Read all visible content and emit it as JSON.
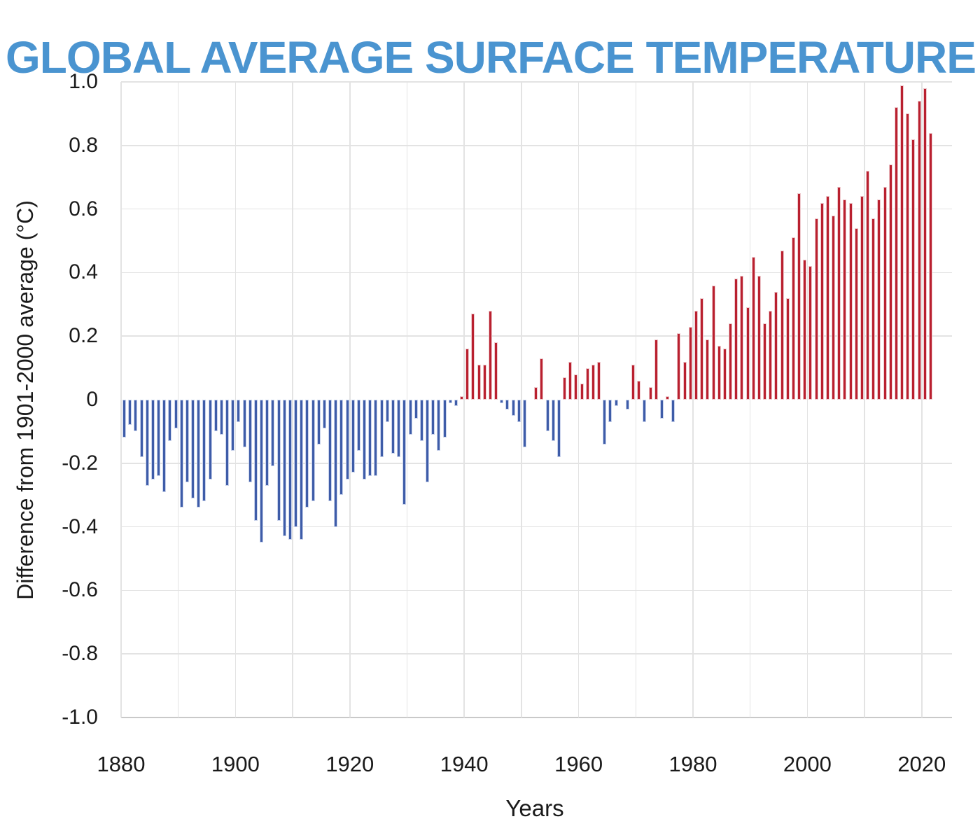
{
  "colors": {
    "background": "#ffffff",
    "title": "#4a94d0",
    "text": "#1a1a1a",
    "gridline": "#e3e3e3",
    "axis_line": "#c9c9c9",
    "positive_bar": "#b9202f",
    "positive_bar_edge": "#eec9cd",
    "negative_bar": "#3e5ca8",
    "negative_bar_edge": "#c9d3ec"
  },
  "chart_data": {
    "type": "bar",
    "title": "GLOBAL AVERAGE SURFACE TEMPERATURE",
    "xlabel": "Years",
    "ylabel": "Difference from 1901-2000 average (°C)",
    "ylim": [
      -1.0,
      1.0
    ],
    "grid": "on",
    "legend": "none",
    "y_tick_values": [
      1.0,
      0.8,
      0.6,
      0.4,
      0.2,
      0,
      -0.2,
      -0.4,
      -0.6,
      -0.8,
      -1.0
    ],
    "y_tick_labels": [
      "1.0",
      "0.8",
      "0.6",
      "0.4",
      "0.2",
      "0",
      "-0.2",
      "-0.4",
      "-0.6",
      "-0.8",
      "-1.0"
    ],
    "x_tick_labels": [
      "1880",
      "1900",
      "1920",
      "1940",
      "1960",
      "1980",
      "2000",
      "2020"
    ],
    "x_gridline_years": [
      1880,
      1890,
      1900,
      1910,
      1920,
      1930,
      1940,
      1950,
      1960,
      1970,
      1980,
      1990,
      2000,
      2010,
      2020
    ],
    "start_year": 1880,
    "end_year": 2021,
    "years": [
      1880,
      1881,
      1882,
      1883,
      1884,
      1885,
      1886,
      1887,
      1888,
      1889,
      1890,
      1891,
      1892,
      1893,
      1894,
      1895,
      1896,
      1897,
      1898,
      1899,
      1900,
      1901,
      1902,
      1903,
      1904,
      1905,
      1906,
      1907,
      1908,
      1909,
      1910,
      1911,
      1912,
      1913,
      1914,
      1915,
      1916,
      1917,
      1918,
      1919,
      1920,
      1921,
      1922,
      1923,
      1924,
      1925,
      1926,
      1927,
      1928,
      1929,
      1930,
      1931,
      1932,
      1933,
      1934,
      1935,
      1936,
      1937,
      1938,
      1939,
      1940,
      1941,
      1942,
      1943,
      1944,
      1945,
      1946,
      1947,
      1948,
      1949,
      1950,
      1951,
      1952,
      1953,
      1954,
      1955,
      1956,
      1957,
      1958,
      1959,
      1960,
      1961,
      1962,
      1963,
      1964,
      1965,
      1966,
      1967,
      1968,
      1969,
      1970,
      1971,
      1972,
      1973,
      1974,
      1975,
      1976,
      1977,
      1978,
      1979,
      1980,
      1981,
      1982,
      1983,
      1984,
      1985,
      1986,
      1987,
      1988,
      1989,
      1990,
      1991,
      1992,
      1993,
      1994,
      1995,
      1996,
      1997,
      1998,
      1999,
      2000,
      2001,
      2002,
      2003,
      2004,
      2005,
      2006,
      2007,
      2008,
      2009,
      2010,
      2011,
      2012,
      2013,
      2014,
      2015,
      2016,
      2017,
      2018,
      2019,
      2020,
      2021
    ],
    "values": [
      -0.12,
      -0.08,
      -0.1,
      -0.18,
      -0.27,
      -0.25,
      -0.24,
      -0.29,
      -0.13,
      -0.09,
      -0.34,
      -0.26,
      -0.31,
      -0.34,
      -0.32,
      -0.25,
      -0.1,
      -0.11,
      -0.27,
      -0.16,
      -0.07,
      -0.15,
      -0.26,
      -0.38,
      -0.45,
      -0.27,
      -0.21,
      -0.38,
      -0.43,
      -0.44,
      -0.4,
      -0.44,
      -0.34,
      -0.32,
      -0.14,
      -0.09,
      -0.32,
      -0.4,
      -0.3,
      -0.25,
      -0.23,
      -0.16,
      -0.25,
      -0.24,
      -0.24,
      -0.18,
      -0.07,
      -0.17,
      -0.18,
      -0.33,
      -0.11,
      -0.06,
      -0.13,
      -0.26,
      -0.11,
      -0.16,
      -0.12,
      -0.01,
      -0.02,
      0.01,
      0.16,
      0.27,
      0.11,
      0.11,
      0.28,
      0.18,
      -0.01,
      -0.03,
      -0.05,
      -0.07,
      -0.15,
      0.0,
      0.04,
      0.13,
      -0.1,
      -0.13,
      -0.18,
      0.07,
      0.12,
      0.08,
      0.05,
      0.1,
      0.11,
      0.12,
      -0.14,
      -0.07,
      -0.02,
      0.0,
      -0.03,
      0.11,
      0.06,
      -0.07,
      0.04,
      0.19,
      -0.06,
      0.01,
      -0.07,
      0.21,
      0.12,
      0.23,
      0.28,
      0.32,
      0.19,
      0.36,
      0.17,
      0.16,
      0.24,
      0.38,
      0.39,
      0.29,
      0.45,
      0.39,
      0.24,
      0.28,
      0.34,
      0.47,
      0.32,
      0.51,
      0.65,
      0.44,
      0.42,
      0.57,
      0.62,
      0.64,
      0.58,
      0.67,
      0.63,
      0.62,
      0.54,
      0.64,
      0.72,
      0.57,
      0.63,
      0.67,
      0.74,
      0.92,
      0.99,
      0.9,
      0.82,
      0.94,
      0.98,
      0.84
    ]
  }
}
